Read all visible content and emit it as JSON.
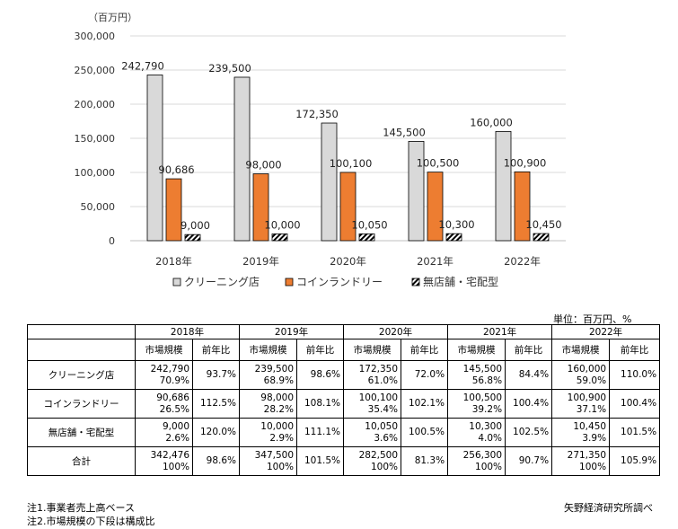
{
  "chart_data": {
    "type": "bar",
    "unit_label": "（百万円）",
    "categories": [
      "2018年",
      "2019年",
      "2020年",
      "2021年",
      "2022年"
    ],
    "ylim": [
      0,
      300000
    ],
    "yticks": [
      {
        "value": 0,
        "label": "0"
      },
      {
        "value": 50000,
        "label": "50,000"
      },
      {
        "value": 100000,
        "label": "100,000"
      },
      {
        "value": 150000,
        "label": "150,000"
      },
      {
        "value": 200000,
        "label": "200,000"
      },
      {
        "value": 250000,
        "label": "250,000"
      },
      {
        "value": 300000,
        "label": "300,000"
      }
    ],
    "grid": true,
    "legend_position": "bottom",
    "series": [
      {
        "name": "クリーニング店",
        "color": "#d9d9d9",
        "pattern": "solid",
        "values": [
          242790,
          239500,
          172350,
          145500,
          160000
        ],
        "labels": [
          "242,790",
          "239,500",
          "172,350",
          "145,500",
          "160,000"
        ]
      },
      {
        "name": "コインランドリー",
        "color": "#ed7d31",
        "pattern": "solid",
        "values": [
          90686,
          98000,
          100100,
          100500,
          100900
        ],
        "labels": [
          "90,686",
          "98,000",
          "100,100",
          "100,500",
          "100,900"
        ]
      },
      {
        "name": "無店舗・宅配型",
        "color": "#000000",
        "pattern": "hatch",
        "values": [
          9000,
          10000,
          10050,
          10300,
          10450
        ],
        "labels": [
          "9,000",
          "10,000",
          "10,050",
          "10,300",
          "10,450"
        ]
      }
    ]
  },
  "table": {
    "unit_note": "単位：百万円、%",
    "years": [
      "2018年",
      "2019年",
      "2020年",
      "2021年",
      "2022年"
    ],
    "subheaders": [
      "市場規模",
      "前年比"
    ],
    "rows": [
      {
        "label": "クリーニング店",
        "cells": [
          {
            "size": "242,790",
            "share": "70.9%",
            "yoy": "93.7%"
          },
          {
            "size": "239,500",
            "share": "68.9%",
            "yoy": "98.6%"
          },
          {
            "size": "172,350",
            "share": "61.0%",
            "yoy": "72.0%"
          },
          {
            "size": "145,500",
            "share": "56.8%",
            "yoy": "84.4%"
          },
          {
            "size": "160,000",
            "share": "59.0%",
            "yoy": "110.0%"
          }
        ]
      },
      {
        "label": "コインランドリー",
        "cells": [
          {
            "size": "90,686",
            "share": "26.5%",
            "yoy": "112.5%"
          },
          {
            "size": "98,000",
            "share": "28.2%",
            "yoy": "108.1%"
          },
          {
            "size": "100,100",
            "share": "35.4%",
            "yoy": "102.1%"
          },
          {
            "size": "100,500",
            "share": "39.2%",
            "yoy": "100.4%"
          },
          {
            "size": "100,900",
            "share": "37.1%",
            "yoy": "100.4%"
          }
        ]
      },
      {
        "label": "無店舗・宅配型",
        "cells": [
          {
            "size": "9,000",
            "share": "2.6%",
            "yoy": "120.0%"
          },
          {
            "size": "10,000",
            "share": "2.9%",
            "yoy": "111.1%"
          },
          {
            "size": "10,050",
            "share": "3.6%",
            "yoy": "100.5%"
          },
          {
            "size": "10,300",
            "share": "4.0%",
            "yoy": "102.5%"
          },
          {
            "size": "10,450",
            "share": "3.9%",
            "yoy": "101.5%"
          }
        ]
      },
      {
        "label": "合計",
        "cells": [
          {
            "size": "342,476",
            "share": "100%",
            "yoy": "98.6%"
          },
          {
            "size": "347,500",
            "share": "100%",
            "yoy": "101.5%"
          },
          {
            "size": "282,500",
            "share": "100%",
            "yoy": "81.3%"
          },
          {
            "size": "256,300",
            "share": "100%",
            "yoy": "90.7%"
          },
          {
            "size": "271,350",
            "share": "100%",
            "yoy": "105.9%"
          }
        ]
      }
    ]
  },
  "notes": {
    "note1": "注1.事業者売上高ベース",
    "note2": "注2.市場規模の下段は構成比",
    "source": "矢野経済研究所調べ"
  }
}
